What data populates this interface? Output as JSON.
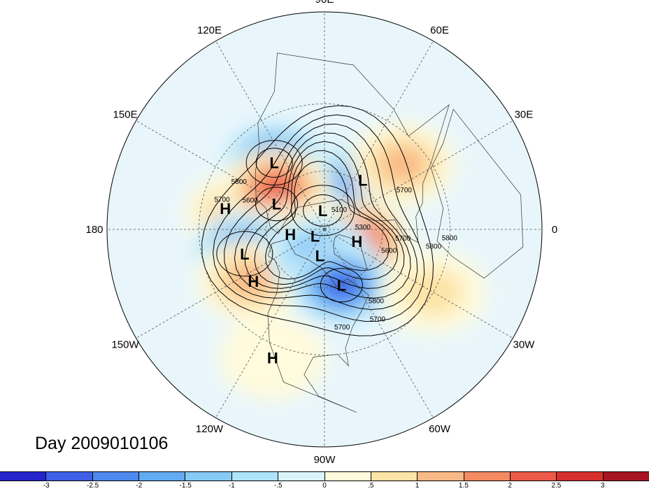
{
  "title": "Day 2009010106",
  "longitude_labels": [
    {
      "text": "90E",
      "lon": 90
    },
    {
      "text": "60E",
      "lon": 60
    },
    {
      "text": "30E",
      "lon": 30
    },
    {
      "text": "0",
      "lon": 0
    },
    {
      "text": "30W",
      "lon": -30
    },
    {
      "text": "60W",
      "lon": -60
    },
    {
      "text": "90W",
      "lon": -90
    },
    {
      "text": "120W",
      "lon": -120
    },
    {
      "text": "150W",
      "lon": -150
    },
    {
      "text": "180",
      "lon": 180
    },
    {
      "text": "150E",
      "lon": 150
    },
    {
      "text": "120E",
      "lon": 120
    }
  ],
  "pressure_centers": [
    {
      "type": "L",
      "lat": 48,
      "lon": 127
    },
    {
      "type": "L",
      "lat": 58,
      "lon": 52
    },
    {
      "type": "H",
      "lat": 40,
      "lon": 168
    },
    {
      "type": "L",
      "lat": 62,
      "lon": 152
    },
    {
      "type": "L",
      "lat": 80,
      "lon": 95
    },
    {
      "type": "H",
      "lat": 72,
      "lon": -172
    },
    {
      "type": "L",
      "lat": 84,
      "lon": -145
    },
    {
      "type": "H",
      "lat": 72,
      "lon": -20
    },
    {
      "type": "L",
      "lat": 48,
      "lon": -163
    },
    {
      "type": "L",
      "lat": 76,
      "lon": -100
    },
    {
      "type": "H",
      "lat": 46,
      "lon": -144
    },
    {
      "type": "L",
      "lat": 60,
      "lon": -73
    },
    {
      "type": "H",
      "lat": 25,
      "lon": -112
    }
  ],
  "contour_labels": [
    "5800",
    "5700",
    "5600",
    "5300",
    "5100",
    "5700",
    "5800",
    "5700",
    "5600",
    "5700",
    "5800",
    "5700",
    "5800"
  ],
  "colorbar": {
    "colors": [
      "#2525cc",
      "#3f5fe6",
      "#4f88ee",
      "#62abf2",
      "#86caf6",
      "#ade4fa",
      "#daf4fb",
      "#fffbdc",
      "#fde3a6",
      "#f9b986",
      "#f38a62",
      "#ec5a48",
      "#d8302c",
      "#a81522"
    ],
    "ticks": [
      "-3",
      "-2.5",
      "-2",
      "-1.5",
      "-1",
      "-.5",
      "0",
      ".5",
      "1",
      "1.5",
      "2",
      "2.5",
      "3"
    ]
  },
  "anomaly_field": {
    "blobs": [
      {
        "lat": 48,
        "lon": 127,
        "value": -3
      },
      {
        "lat": 46,
        "lon": 170,
        "value": 1.5
      },
      {
        "lat": 58,
        "lon": 52,
        "value": -2.5
      },
      {
        "lat": 62,
        "lon": 152,
        "value": -2.5
      },
      {
        "lat": 58,
        "lon": 140,
        "value": 2.5
      },
      {
        "lat": 68,
        "lon": -160,
        "value": 2
      },
      {
        "lat": 72,
        "lon": -20,
        "value": 3
      },
      {
        "lat": 48,
        "lon": -163,
        "value": -3
      },
      {
        "lat": 45,
        "lon": -146,
        "value": 1.5
      },
      {
        "lat": 76,
        "lon": -100,
        "value": -2
      },
      {
        "lat": 60,
        "lon": -73,
        "value": -3
      },
      {
        "lat": 40,
        "lon": 40,
        "value": 1.5
      },
      {
        "lat": 25,
        "lon": -112,
        "value": 0.5
      },
      {
        "lat": 30,
        "lon": -30,
        "value": 1
      }
    ]
  }
}
